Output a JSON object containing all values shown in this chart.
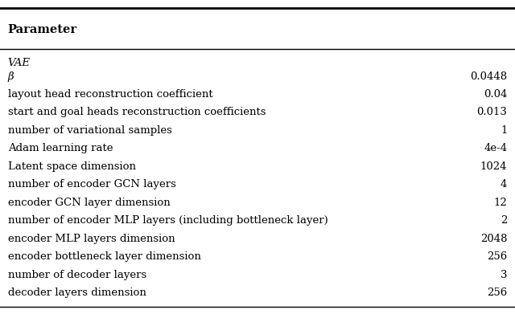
{
  "header": "Parameter",
  "section": "VAE",
  "rows": [
    [
      "β",
      "0.0448"
    ],
    [
      "layout head reconstruction coefficient",
      "0.04"
    ],
    [
      "start and goal heads reconstruction coefficients",
      "0.013"
    ],
    [
      "number of variational samples",
      "1"
    ],
    [
      "Adam learning rate",
      "4e-4"
    ],
    [
      "Latent space dimension",
      "1024"
    ],
    [
      "number of encoder GCN layers",
      "4"
    ],
    [
      "encoder GCN layer dimension",
      "12"
    ],
    [
      "number of encoder MLP layers (including bottleneck layer)",
      "2"
    ],
    [
      "encoder MLP layers dimension",
      "2048"
    ],
    [
      "encoder bottleneck layer dimension",
      "256"
    ],
    [
      "number of decoder layers",
      "3"
    ],
    [
      "decoder layers dimension",
      "256"
    ]
  ],
  "bg_color": "#ffffff",
  "text_color": "#000000",
  "header_fontsize": 10.5,
  "body_fontsize": 9.5,
  "fig_width": 6.4,
  "fig_height": 3.91
}
